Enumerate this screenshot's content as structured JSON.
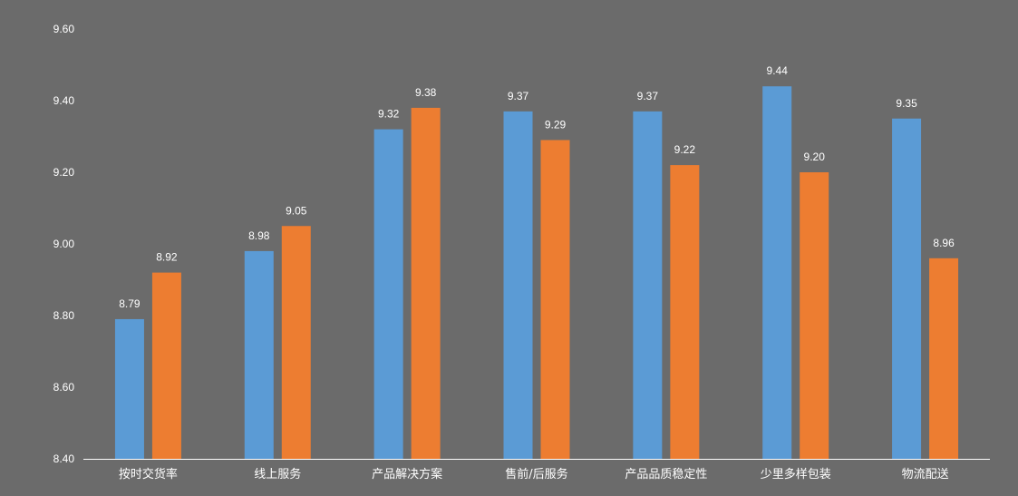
{
  "chart_data": {
    "type": "bar",
    "categories": [
      "按时交货率",
      "线上服务",
      "产品解决方案",
      "售前/后服务",
      "产品品质稳定性",
      "少里多样包装",
      "物流配送"
    ],
    "series": [
      {
        "values": [
          8.79,
          8.98,
          9.32,
          9.37,
          9.37,
          9.44,
          9.35
        ],
        "color": "#5b9bd5"
      },
      {
        "values": [
          8.92,
          9.05,
          9.38,
          9.29,
          9.22,
          9.2,
          8.96
        ],
        "color": "#ed7d31"
      }
    ],
    "yticks": [
      "8.40",
      "8.60",
      "8.80",
      "9.00",
      "9.20",
      "9.40",
      "9.60"
    ],
    "ylim": [
      8.4,
      9.6
    ],
    "value_labels": [
      [
        "8.79",
        "8.98",
        "9.32",
        "9.37",
        "9.37",
        "9.44",
        "9.35"
      ],
      [
        "8.92",
        "9.05",
        "9.38",
        "9.29",
        "9.22",
        "9.20",
        "8.96"
      ]
    ],
    "grid": false,
    "legend": "none",
    "background": "#6b6b6b",
    "axis_color": "#ffffff"
  }
}
